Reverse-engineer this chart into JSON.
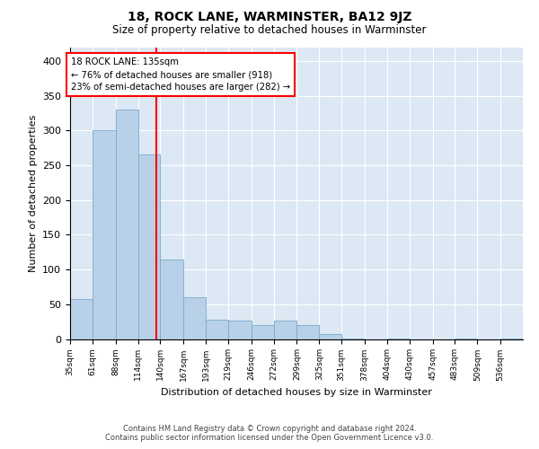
{
  "title": "18, ROCK LANE, WARMINSTER, BA12 9JZ",
  "subtitle": "Size of property relative to detached houses in Warminster",
  "xlabel": "Distribution of detached houses by size in Warminster",
  "ylabel": "Number of detached properties",
  "bar_color": "#b8d0e8",
  "bar_edge_color": "#7aaac8",
  "background_color": "#dce8f4",
  "annotation_text": "18 ROCK LANE: 135sqm\n← 76% of detached houses are smaller (918)\n23% of semi-detached houses are larger (282) →",
  "vline_color": "red",
  "vline_x": 135,
  "footer_line1": "Contains HM Land Registry data © Crown copyright and database right 2024.",
  "footer_line2": "Contains public sector information licensed under the Open Government Licence v3.0.",
  "bin_edges": [
    35,
    61,
    88,
    114,
    140,
    167,
    193,
    219,
    246,
    272,
    299,
    325,
    351,
    378,
    404,
    430,
    457,
    483,
    509,
    536,
    562
  ],
  "bar_heights": [
    58,
    300,
    330,
    265,
    115,
    60,
    28,
    27,
    20,
    27,
    20,
    7,
    1,
    0,
    1,
    0,
    0,
    1,
    0,
    1
  ],
  "ylim": [
    0,
    420
  ],
  "yticks": [
    0,
    50,
    100,
    150,
    200,
    250,
    300,
    350,
    400
  ]
}
